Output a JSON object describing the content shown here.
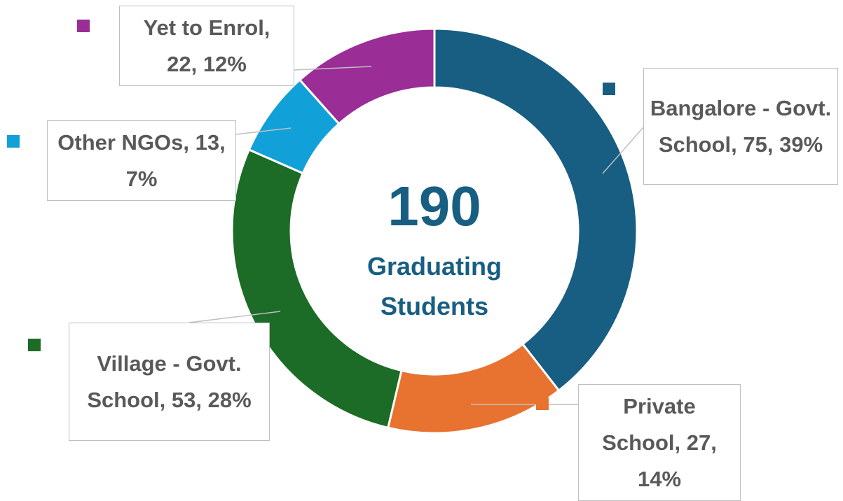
{
  "chart_data": {
    "type": "donut",
    "categories": [
      "Bangalore - Govt. School",
      "Private School",
      "Village - Govt. School",
      "Other NGOs",
      "Yet to Enrol"
    ],
    "values": [
      75,
      27,
      53,
      13,
      22
    ],
    "value_labels": [
      "Bangalore - Govt. School, 75, 39%",
      "Private School, 27, 14%",
      "Village - Govt. School, 53, 28%",
      "Other NGOs, 13, 7%",
      "Yet to Enrol, 22, 12%"
    ],
    "colors": [
      "#175e82",
      "#e8722f",
      "#1c6b27",
      "#12a0d8",
      "#9b2d96"
    ],
    "center_value": 190,
    "center_label": "Graduating Students"
  }
}
